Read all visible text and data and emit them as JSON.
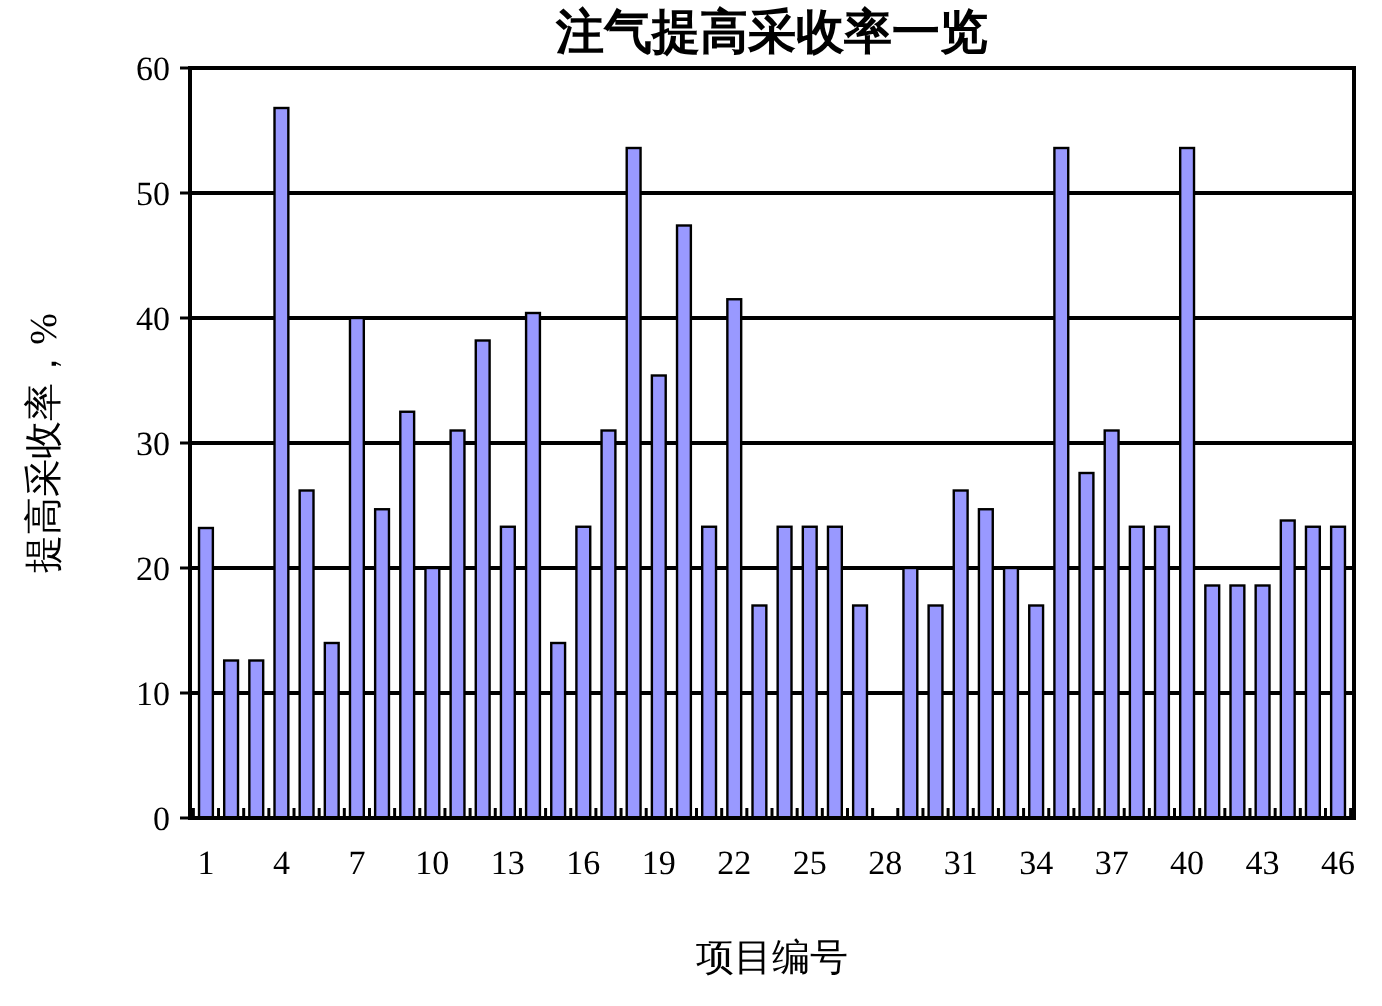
{
  "chart_data": {
    "type": "bar",
    "title": "注气提高采收率一览",
    "xlabel": "项目编号",
    "ylabel": "提高采收率，%",
    "categories": [
      "1",
      null,
      null,
      "4",
      null,
      null,
      "7",
      null,
      null,
      "10",
      null,
      null,
      "13",
      null,
      null,
      "16",
      null,
      null,
      "19",
      null,
      null,
      "22",
      null,
      null,
      "25",
      null,
      null,
      "28",
      null,
      null,
      "31",
      null,
      null,
      "34",
      null,
      null,
      "37",
      null,
      null,
      "40",
      null,
      null,
      "43",
      null,
      null,
      "46"
    ],
    "values": [
      23.2,
      12.6,
      12.6,
      56.8,
      26.2,
      14,
      40,
      24.7,
      32.5,
      20,
      31,
      38.2,
      23.3,
      40.4,
      14,
      23.3,
      31,
      53.6,
      35.4,
      47.4,
      23.3,
      41.5,
      17,
      23.3,
      23.3,
      23.3,
      17,
      null,
      20,
      17,
      26.2,
      24.7,
      20,
      17,
      53.6,
      27.6,
      31,
      23.3,
      23.3,
      53.6,
      18.6,
      18.6,
      18.6,
      23.8,
      23.3,
      23.3
    ],
    "color": "#9999ff",
    "ylim": [
      0,
      60
    ],
    "yticks": [
      0,
      10,
      20,
      30,
      40,
      50,
      60
    ],
    "grid": "y"
  }
}
